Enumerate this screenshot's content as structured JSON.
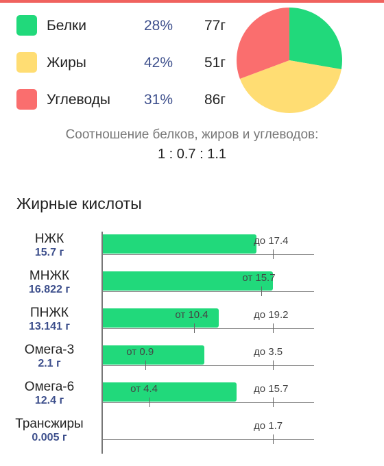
{
  "macros": [
    {
      "name": "Белки",
      "percent": "28%",
      "grams": "77г",
      "color": "#21d97b",
      "share": 28
    },
    {
      "name": "Жиры",
      "percent": "42%",
      "grams": "51г",
      "color": "#ffdd73",
      "share": 42
    },
    {
      "name": "Углеводы",
      "percent": "31%",
      "grams": "86г",
      "color": "#fa6e6e",
      "share": 31
    }
  ],
  "ratio": {
    "caption": "Соотношение белков, жиров и углеводов:",
    "value": "1 : 0.7 : 1.1"
  },
  "fatty_acids": {
    "title": "Жирные кислоты",
    "bar_color": "#21d97b",
    "items": [
      {
        "label": "НЖК",
        "amount": "15.7 г",
        "value": 15.7,
        "range": "до 17.4",
        "min": null,
        "max": 17.4,
        "min_label": "",
        "max_label": "до 17.4"
      },
      {
        "label": "МНЖК",
        "amount": "16.822 г",
        "value": 16.822,
        "min": 15.7,
        "max": null,
        "min_label": "от 15.7",
        "max_label": ""
      },
      {
        "label": "ПНЖК",
        "amount": "13.141 г",
        "value": 13.141,
        "min": 10.4,
        "max": 19.2,
        "min_label": "от 10.4",
        "max_label": "до 19.2"
      },
      {
        "label": "Омега-3",
        "amount": "2.1 г",
        "value": 2.1,
        "min": 0.9,
        "max": 3.5,
        "min_label": "от 0.9",
        "max_label": "до 3.5"
      },
      {
        "label": "Омега-6",
        "amount": "12.4 г",
        "value": 12.4,
        "min": 4.4,
        "max": 15.7,
        "min_label": "от 4.4",
        "max_label": "до 15.7"
      },
      {
        "label": "Трансжиры",
        "amount": "0.005 г",
        "value": 0.005,
        "min": null,
        "max": 1.7,
        "min_label": "",
        "max_label": "до 1.7"
      }
    ]
  }
}
